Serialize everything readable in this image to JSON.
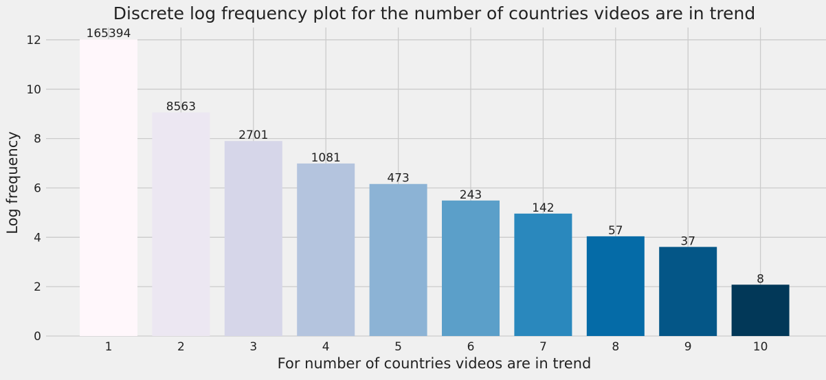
{
  "chart_data": {
    "type": "bar",
    "title": "Discrete log frequency plot for the number of countries videos are in trend",
    "xlabel": "For number of countries videos are in trend",
    "ylabel": "Log frequency",
    "categories": [
      "1",
      "2",
      "3",
      "4",
      "5",
      "6",
      "7",
      "8",
      "9",
      "10"
    ],
    "values": [
      12.02,
      9.06,
      7.9,
      6.99,
      6.16,
      5.49,
      4.96,
      4.04,
      3.61,
      2.08
    ],
    "data_labels": [
      "165394",
      "8563",
      "2701",
      "1081",
      "473",
      "243",
      "142",
      "57",
      "37",
      "8"
    ],
    "colors": [
      "#fff7fb",
      "#ece7f2",
      "#d6d6e9",
      "#b4c4de",
      "#8cb3d5",
      "#5b9fc9",
      "#2a88bd",
      "#056ba7",
      "#045687",
      "#023858"
    ],
    "ylim": [
      0,
      12.5
    ],
    "yticks": [
      0,
      2,
      4,
      6,
      8,
      10,
      12
    ],
    "grid": true,
    "legend": "none"
  }
}
